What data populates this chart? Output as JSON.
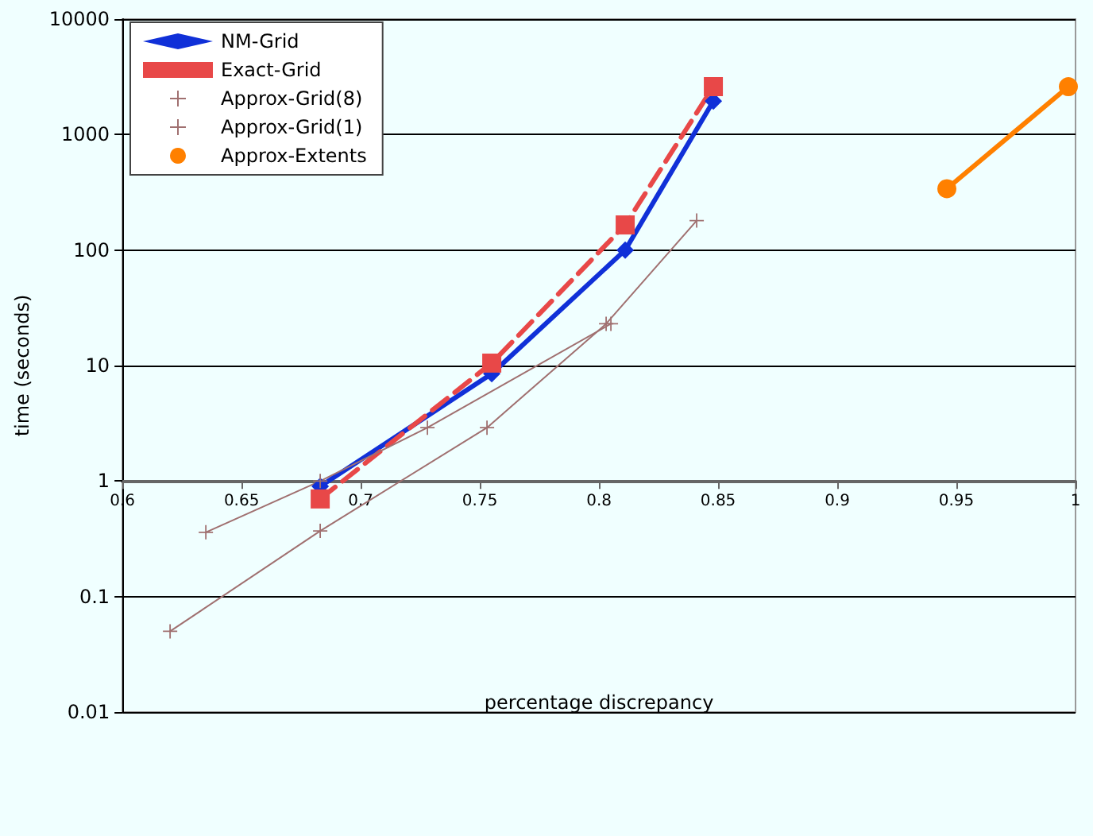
{
  "chart_data": {
    "type": "line",
    "xlabel": "percentage discrepancy",
    "ylabel": "time (seconds)",
    "log": "y",
    "grid": "y",
    "legend": "top left",
    "xlim": [
      0.6,
      1
    ],
    "xticks": [
      0.6,
      0.65,
      0.7,
      0.75,
      0.8,
      0.85,
      0.9,
      0.95,
      1
    ],
    "ylim": [
      0.01,
      10000
    ],
    "yticks": [
      0.01,
      0.1,
      1,
      10,
      100,
      1000,
      10000
    ],
    "series": [
      {
        "name": "NM-Grid",
        "color": "#1030d8",
        "marker": "diamond",
        "line_style": "solid",
        "x": [
          0.683,
          0.755,
          0.811,
          0.848
        ],
        "values": [
          0.9,
          8.5,
          100,
          1950
        ]
      },
      {
        "name": "Exact-Grid",
        "color": "#e84848",
        "marker": "square",
        "line_style": "dashed",
        "x": [
          0.683,
          0.755,
          0.811,
          0.848
        ],
        "values": [
          0.7,
          10.5,
          165,
          2600
        ]
      },
      {
        "name": "Approx-Grid(8)",
        "color": "#a07070",
        "marker": "cross",
        "line_style": "solid",
        "x": [
          0.635,
          0.683,
          0.728,
          0.805
        ],
        "values": [
          0.36,
          1,
          2.9,
          23
        ]
      },
      {
        "name": "Approx-Grid(1)",
        "color": "#a07070",
        "marker": "cross",
        "line_style": "solid",
        "x": [
          0.62,
          0.683,
          0.753,
          0.803,
          0.841
        ],
        "values": [
          0.05,
          0.37,
          2.9,
          23,
          180
        ]
      },
      {
        "name": "Approx-Extents",
        "color": "#ff8000",
        "marker": "circle",
        "line_style": "solid",
        "x": [
          0.946,
          0.997
        ],
        "values": [
          340,
          2600
        ]
      }
    ]
  }
}
